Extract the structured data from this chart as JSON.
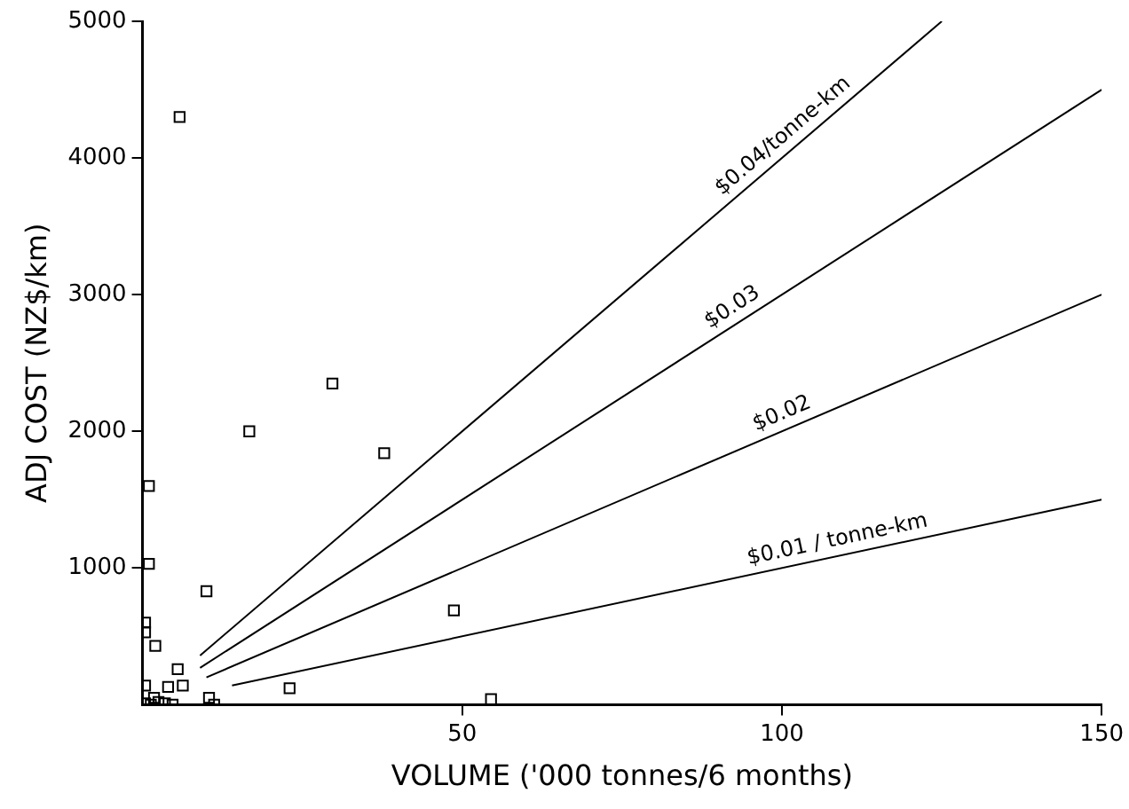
{
  "chart_data": {
    "type": "scatter",
    "xlabel": "VOLUME ('000 tonnes/6 months)",
    "ylabel": "ADJ COST (NZ$/km)",
    "xlim": [
      0,
      150
    ],
    "ylim": [
      0,
      5000
    ],
    "xticks": [
      50,
      100,
      150
    ],
    "yticks": [
      1000,
      2000,
      3000,
      4000,
      5000
    ],
    "grid": false,
    "legend": false,
    "series": [
      {
        "marker": "square",
        "color": "#000000",
        "x": [
          5.8,
          29.7,
          16.7,
          37.8,
          1,
          1,
          10,
          48.7,
          23,
          54.5,
          0.4,
          0.4,
          2,
          5.5,
          6.3,
          4,
          0.4,
          10.4,
          11.2,
          1.8,
          0.4,
          1.3,
          2.5,
          3.5,
          4.7
        ],
        "values": [
          4300,
          2350,
          2000,
          1840,
          1600,
          1030,
          830,
          690,
          120,
          40,
          600,
          530,
          430,
          260,
          140,
          130,
          140,
          50,
          0,
          50,
          10,
          0,
          20,
          10,
          0
        ]
      },
      {
        "type": "line",
        "name": "$0.04/tonne-km",
        "marker": "none",
        "color": "#000000",
        "x": [
          9,
          125
        ],
        "values": [
          360,
          5000
        ]
      },
      {
        "type": "line",
        "name": "$0.03",
        "marker": "none",
        "color": "#000000",
        "x": [
          9,
          150
        ],
        "values": [
          270,
          4500
        ]
      },
      {
        "type": "line",
        "name": "$0.02",
        "marker": "none",
        "color": "#000000",
        "x": [
          10,
          150
        ],
        "values": [
          200,
          3000
        ]
      },
      {
        "type": "line",
        "name": "$0.01 / tonne-km",
        "marker": "none",
        "color": "#000000",
        "x": [
          14,
          150
        ],
        "values": [
          140,
          1500
        ]
      }
    ]
  }
}
